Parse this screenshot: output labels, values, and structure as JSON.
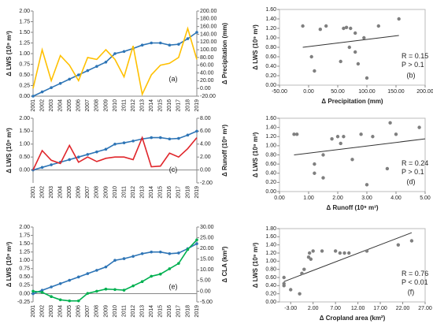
{
  "chart_data": [
    {
      "type": "line",
      "panel_label": "(a)",
      "ylabel": "Δ LWS (10⁹ m³)",
      "y2label": "Δ Precipitation (mm)",
      "categories": [
        "2001",
        "2002",
        "2003",
        "2004",
        "2005",
        "2006",
        "2007",
        "2008",
        "2009",
        "2010",
        "2011",
        "2012",
        "2013",
        "2014",
        "2015",
        "2016",
        "2017",
        "2018",
        "2019"
      ],
      "series": [
        {
          "name": "Δ LWS",
          "color": "#2e75b6",
          "markers": true,
          "values": [
            0,
            0.1,
            0.2,
            0.3,
            0.4,
            0.5,
            0.6,
            0.7,
            0.8,
            1.0,
            1.05,
            1.12,
            1.2,
            1.25,
            1.25,
            1.2,
            1.22,
            1.35,
            1.5
          ]
        },
        {
          "name": "Δ Precipitation",
          "color": "#ffc000",
          "markers": false,
          "axis": "y2",
          "values": [
            0,
            100,
            20,
            85,
            60,
            20,
            80,
            75,
            100,
            75,
            30,
            110,
            -15,
            35,
            60,
            65,
            80,
            155,
            75
          ]
        }
      ],
      "ylim": [
        0,
        2
      ],
      "yticks": [
        {
          "value": 0,
          "label": "0.00"
        },
        {
          "value": 0.25,
          "label": "0.25"
        },
        {
          "value": 0.5,
          "label": "0.50"
        },
        {
          "value": 0.75,
          "label": "0.75"
        },
        {
          "value": 1,
          "label": "1.00"
        },
        {
          "value": 1.25,
          "label": "1.25"
        },
        {
          "value": 1.5,
          "label": "1.50"
        },
        {
          "value": 1.75,
          "label": "1.75"
        },
        {
          "value": 2,
          "label": "2.00"
        }
      ],
      "y2lim": [
        -20,
        200
      ],
      "y2ticks": [
        {
          "value": -20,
          "label": "-20.00"
        },
        {
          "value": 0,
          "label": "0.00"
        },
        {
          "value": 20,
          "label": "20.00"
        },
        {
          "value": 40,
          "label": "40.00"
        },
        {
          "value": 60,
          "label": "60.00"
        },
        {
          "value": 80,
          "label": "80.00"
        },
        {
          "value": 100,
          "label": "100.00"
        },
        {
          "value": 120,
          "label": "120.00"
        },
        {
          "value": 140,
          "label": "140.00"
        },
        {
          "value": 160,
          "label": "160.00"
        },
        {
          "value": 180,
          "label": "180.00"
        },
        {
          "value": 200,
          "label": "200.00"
        }
      ]
    },
    {
      "type": "scatter",
      "panel_label": "(b)",
      "ylabel": "Δ LWS (10⁹ m³)",
      "xlabel": "Δ Precipitation (mm)",
      "color": "#7f7f7f",
      "x": [
        -10,
        5,
        10,
        20,
        30,
        55,
        60,
        65,
        70,
        72,
        80,
        80,
        85,
        95,
        100,
        120,
        155
      ],
      "values": [
        1.25,
        0.6,
        0.3,
        1.18,
        1.25,
        0.5,
        1.2,
        1.22,
        0.8,
        1.2,
        0.7,
        1.1,
        0.45,
        1.0,
        0.15,
        1.25,
        1.4
      ],
      "trendline": {
        "x": [
          -10,
          155
        ],
        "y": [
          0.8,
          1.05
        ]
      },
      "annotations": [
        "R = 0.15",
        "P > 0.1"
      ],
      "xlim": [
        -50,
        200
      ],
      "xticks": [
        {
          "value": -50,
          "label": "-50.00"
        },
        {
          "value": 0,
          "label": "0.00"
        },
        {
          "value": 50,
          "label": "50.00"
        },
        {
          "value": 100,
          "label": "100.00"
        },
        {
          "value": 150,
          "label": "150.00"
        },
        {
          "value": 200,
          "label": "200.00"
        }
      ],
      "ylim": [
        0,
        1.6
      ],
      "yticks": [
        {
          "value": 0,
          "label": "0.00"
        },
        {
          "value": 0.2,
          "label": "0.20"
        },
        {
          "value": 0.4,
          "label": "0.40"
        },
        {
          "value": 0.6,
          "label": "0.60"
        },
        {
          "value": 0.8,
          "label": "0.80"
        },
        {
          "value": 1,
          "label": "1.00"
        },
        {
          "value": 1.2,
          "label": "1.20"
        },
        {
          "value": 1.4,
          "label": "1.40"
        },
        {
          "value": 1.6,
          "label": "1.60"
        }
      ]
    },
    {
      "type": "line",
      "panel_label": "(c)",
      "ylabel": "Δ LWS (10⁹ m³)",
      "y2label": "Δ Runoff (10⁹ m³)",
      "categories": [
        "2001",
        "2002",
        "2003",
        "2004",
        "2005",
        "2006",
        "2007",
        "2008",
        "2009",
        "2010",
        "2011",
        "2012",
        "2013",
        "2014",
        "2015",
        "2016",
        "2017",
        "2018",
        "2019"
      ],
      "series": [
        {
          "name": "Δ LWS",
          "color": "#2e75b6",
          "markers": true,
          "values": [
            0,
            0.1,
            0.2,
            0.3,
            0.4,
            0.5,
            0.6,
            0.7,
            0.8,
            1.0,
            1.05,
            1.12,
            1.2,
            1.25,
            1.25,
            1.2,
            1.22,
            1.35,
            1.5
          ]
        },
        {
          "name": "Δ Runoff",
          "color": "#e0262b",
          "markers": false,
          "axis": "y2",
          "values": [
            0,
            3,
            1.5,
            1,
            3.8,
            1.2,
            2,
            1.3,
            1.8,
            2,
            2,
            1.6,
            5,
            0.5,
            0.6,
            2.6,
            2,
            3.3,
            5
          ]
        }
      ],
      "ylim": [
        -0.5,
        2
      ],
      "yticks": [
        {
          "value": 0,
          "label": "0.00"
        },
        {
          "value": 0.5,
          "label": "0.50"
        },
        {
          "value": 1,
          "label": "1.00"
        },
        {
          "value": 1.5,
          "label": "1.50"
        },
        {
          "value": 2,
          "label": "2.00"
        }
      ],
      "y2lim": [
        -2,
        8
      ],
      "y2ticks": [
        {
          "value": -2,
          "label": "-2.00"
        },
        {
          "value": 0,
          "label": "0.00"
        },
        {
          "value": 2,
          "label": "2.00"
        },
        {
          "value": 4,
          "label": "4.00"
        },
        {
          "value": 6,
          "label": "6.00"
        },
        {
          "value": 8,
          "label": "8.00"
        }
      ]
    },
    {
      "type": "scatter",
      "panel_label": "(d)",
      "ylabel": "Δ LWS (10⁹ m³)",
      "xlabel": "Δ Runoff (10⁹ m³)",
      "color": "#7f7f7f",
      "x": [
        0.5,
        0.6,
        1.2,
        1.2,
        1.5,
        1.5,
        1.8,
        2.0,
        2.1,
        2.2,
        2.5,
        2.8,
        3.0,
        3.2,
        3.7,
        3.8,
        4.0,
        4.8
      ],
      "values": [
        1.25,
        1.25,
        0.6,
        0.4,
        0.3,
        0.8,
        1.15,
        1.2,
        1.05,
        1.2,
        0.7,
        1.25,
        0.15,
        1.2,
        0.5,
        1.5,
        1.25,
        1.4
      ],
      "trendline": {
        "x": [
          0.5,
          5
        ],
        "y": [
          0.8,
          1.15
        ]
      },
      "annotations": [
        "R = 0.24",
        "P > 0.1"
      ],
      "xlim": [
        0,
        5
      ],
      "xticks": [
        {
          "value": 0,
          "label": "0.00"
        },
        {
          "value": 1,
          "label": "1.00"
        },
        {
          "value": 2,
          "label": "2.00"
        },
        {
          "value": 3,
          "label": "3.00"
        },
        {
          "value": 4,
          "label": "4.00"
        },
        {
          "value": 5,
          "label": "5.00"
        }
      ],
      "ylim": [
        0,
        1.6
      ],
      "yticks": [
        {
          "value": 0,
          "label": "0.00"
        },
        {
          "value": 0.2,
          "label": "0.20"
        },
        {
          "value": 0.4,
          "label": "0.40"
        },
        {
          "value": 0.6,
          "label": "0.60"
        },
        {
          "value": 0.8,
          "label": "0.80"
        },
        {
          "value": 1,
          "label": "1.00"
        },
        {
          "value": 1.2,
          "label": "1.20"
        },
        {
          "value": 1.4,
          "label": "1.40"
        },
        {
          "value": 1.6,
          "label": "1.60"
        }
      ]
    },
    {
      "type": "line",
      "panel_label": "(e)",
      "ylabel": "Δ LWS (10⁹ m³)",
      "y2label": "Δ CLA (km²)",
      "categories": [
        "2001",
        "2002",
        "2003",
        "2004",
        "2005",
        "2006",
        "2007",
        "2008",
        "2009",
        "2010",
        "2011",
        "2012",
        "2013",
        "2014",
        "2015",
        "2016",
        "2017",
        "2018",
        "2019"
      ],
      "series": [
        {
          "name": "Δ LWS",
          "color": "#2e75b6",
          "markers": true,
          "values": [
            0,
            0.1,
            0.2,
            0.3,
            0.4,
            0.5,
            0.6,
            0.7,
            0.8,
            1.0,
            1.05,
            1.12,
            1.2,
            1.25,
            1.25,
            1.2,
            1.22,
            1.35,
            1.5
          ]
        },
        {
          "name": "Δ CLA",
          "color": "#00b050",
          "markers": true,
          "axis": "y2",
          "values": [
            0,
            -0.5,
            -2.5,
            -4,
            -4.5,
            -4.5,
            -1,
            0,
            1,
            0.8,
            0.5,
            2.5,
            4.5,
            7,
            8,
            10.5,
            13,
            19.5,
            24
          ]
        }
      ],
      "ylim": [
        -0.25,
        2
      ],
      "yticks": [
        {
          "value": -0.25,
          "label": "-0.25"
        },
        {
          "value": 0,
          "label": "0.00"
        },
        {
          "value": 0.25,
          "label": "0.25"
        },
        {
          "value": 0.5,
          "label": "0.50"
        },
        {
          "value": 0.75,
          "label": "0.75"
        },
        {
          "value": 1,
          "label": "1.00"
        },
        {
          "value": 1.25,
          "label": "1.25"
        },
        {
          "value": 1.5,
          "label": "1.50"
        },
        {
          "value": 1.75,
          "label": "1.75"
        },
        {
          "value": 2,
          "label": "2.00"
        }
      ],
      "y2lim": [
        -5,
        30
      ],
      "y2ticks": [
        {
          "value": -5,
          "label": "-5.00"
        },
        {
          "value": 0,
          "label": "0.00"
        },
        {
          "value": 5,
          "label": "5.00"
        },
        {
          "value": 10,
          "label": "10.00"
        },
        {
          "value": 15,
          "label": "15.00"
        },
        {
          "value": 20,
          "label": "20.00"
        },
        {
          "value": 25,
          "label": "25.00"
        },
        {
          "value": 30,
          "label": "30.00"
        }
      ]
    },
    {
      "type": "scatter",
      "panel_label": "(f)",
      "ylabel": "Δ LWS (10⁹ m³)",
      "xlabel": "Δ Cropland area (km²)",
      "color": "#7f7f7f",
      "x": [
        -4.5,
        -4.5,
        -4.5,
        -3,
        -1,
        -0.5,
        0,
        1,
        1.2,
        1.5,
        2,
        4,
        7,
        8,
        9,
        10,
        14,
        21,
        24
      ],
      "values": [
        0.6,
        0.45,
        0.4,
        0.3,
        0.2,
        0.7,
        0.8,
        1.1,
        1.2,
        1.05,
        1.25,
        1.25,
        1.25,
        1.2,
        1.2,
        1.2,
        1.25,
        1.4,
        1.5
      ],
      "trendline": {
        "x": [
          -4.5,
          24
        ],
        "y": [
          0.5,
          1.7
        ]
      },
      "annotations": [
        "R = 0.76",
        "P < 0.01"
      ],
      "xlim": [
        -5.5,
        27
      ],
      "xticks": [
        {
          "value": -3,
          "label": "-3.00"
        },
        {
          "value": 2,
          "label": "2.00"
        },
        {
          "value": 7,
          "label": "7.00"
        },
        {
          "value": 12,
          "label": "12.00"
        },
        {
          "value": 17,
          "label": "17.00"
        },
        {
          "value": 22,
          "label": "22.00"
        },
        {
          "value": 27,
          "label": "27.00"
        }
      ],
      "ylim": [
        0,
        1.8
      ],
      "yticks": [
        {
          "value": 0,
          "label": "0.00"
        },
        {
          "value": 0.2,
          "label": "0.20"
        },
        {
          "value": 0.4,
          "label": "0.40"
        },
        {
          "value": 0.6,
          "label": "0.60"
        },
        {
          "value": 0.8,
          "label": "0.80"
        },
        {
          "value": 1,
          "label": "1.00"
        },
        {
          "value": 1.2,
          "label": "1.20"
        },
        {
          "value": 1.4,
          "label": "1.40"
        },
        {
          "value": 1.6,
          "label": "1.60"
        },
        {
          "value": 1.8,
          "label": "1.80"
        }
      ]
    }
  ]
}
